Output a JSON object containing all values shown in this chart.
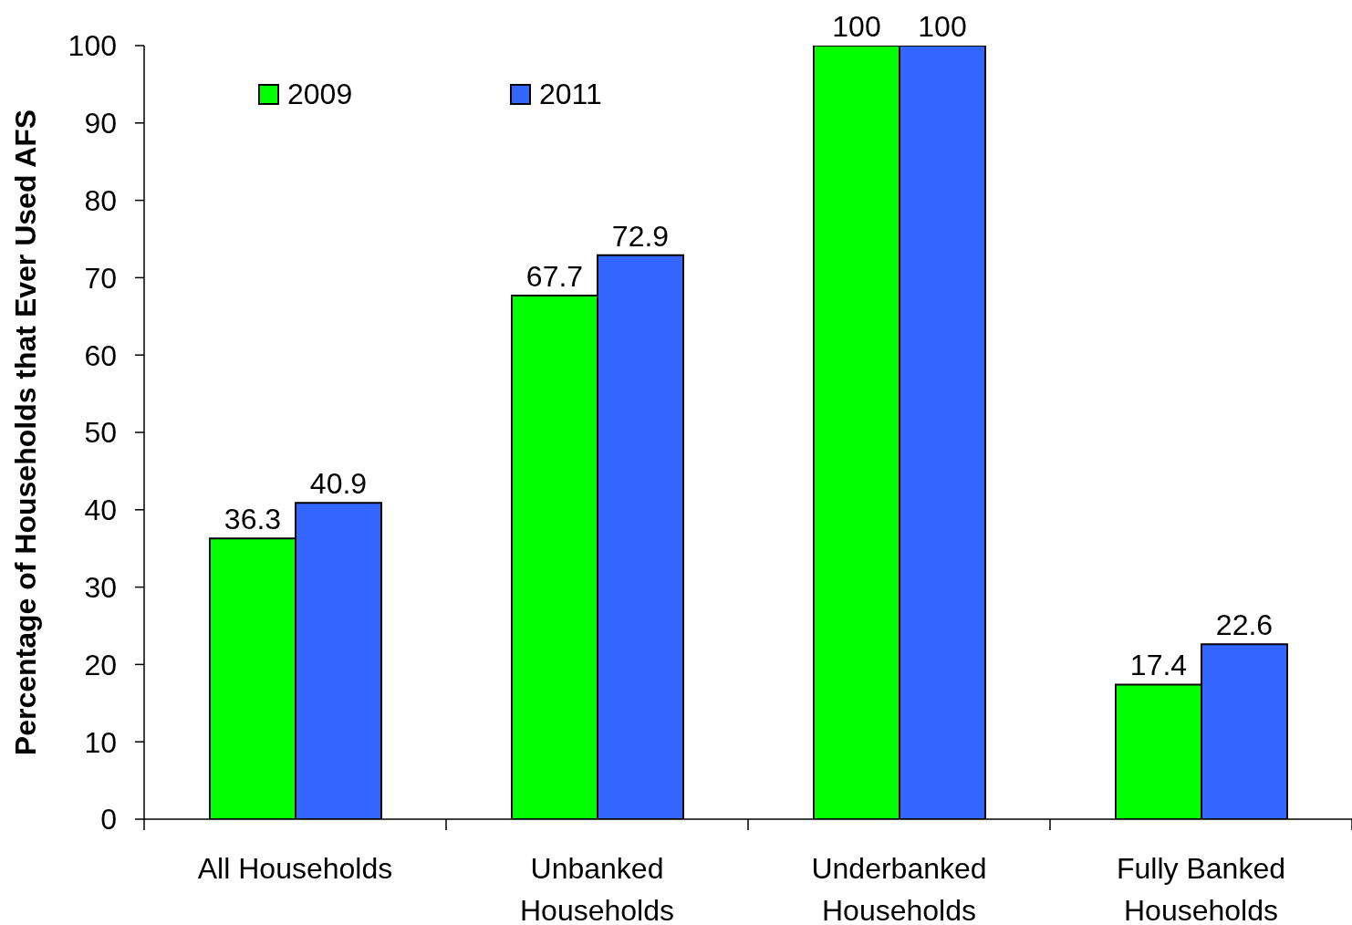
{
  "chart_data": {
    "type": "bar",
    "ylabel": "Percentage of Households that Ever Used AFS",
    "categories": [
      "All Households",
      "Unbanked Households",
      "Underbanked Households",
      "Fully Banked Households"
    ],
    "series": [
      {
        "name": "2009",
        "color": "#00ff00",
        "values": [
          36.3,
          67.7,
          100,
          17.4
        ]
      },
      {
        "name": "2011",
        "color": "#3366ff",
        "values": [
          40.9,
          72.9,
          100,
          22.6
        ]
      }
    ],
    "ylim": [
      0,
      100
    ],
    "yticks": [
      0,
      10,
      20,
      30,
      40,
      50,
      60,
      70,
      80,
      90,
      100
    ],
    "legend": "top left",
    "data_labels": true
  }
}
